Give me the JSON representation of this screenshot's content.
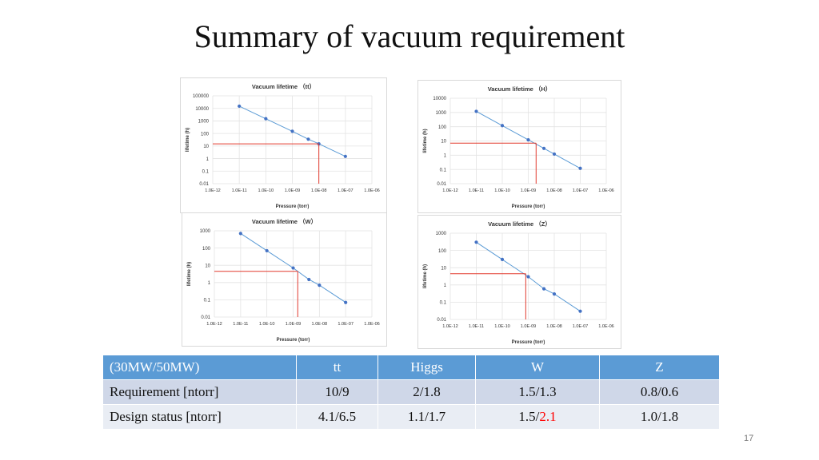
{
  "title": "Summary of vacuum requirement",
  "page_number": "17",
  "colors": {
    "series": "#5b9bd5",
    "marker": "#4472c4",
    "requirement_line": "#e23a2e",
    "table_header": "#5b9bd5",
    "highlight_text": "#ff0000"
  },
  "chart_data": [
    {
      "type": "line",
      "title": "Vacuum lifetime （tt）",
      "xlabel": "Pressure (torr)",
      "ylabel": "lifetime (h)",
      "x_scale": "log",
      "y_scale": "log",
      "xticks": [
        "1.0E-12",
        "1.0E-11",
        "1.0E-10",
        "1.0E-09",
        "1.0E-08",
        "1.0E-07",
        "1.0E-06"
      ],
      "yticks": [
        "0.01",
        "0.1",
        "1",
        "10",
        "100",
        "1000",
        "10000",
        "100000"
      ],
      "xlim": [
        1e-12,
        1e-06
      ],
      "ylim": [
        0.01,
        100000
      ],
      "series": [
        {
          "name": "lifetime",
          "x": [
            1e-11,
            1e-10,
            1e-09,
            4e-09,
            1e-08,
            1e-07
          ],
          "y": [
            15000,
            1500,
            150,
            35,
            15,
            1.5
          ]
        }
      ],
      "requirement": {
        "x": 1e-08,
        "y": 15
      }
    },
    {
      "type": "line",
      "title": "Vacuum lifetime （H）",
      "xlabel": "Pressure (torr)",
      "ylabel": "lifetime (h)",
      "x_scale": "log",
      "y_scale": "log",
      "xticks": [
        "1.0E-12",
        "1.0E-11",
        "1.0E-10",
        "1.0E-09",
        "1.0E-08",
        "1.0E-07",
        "1.0E-06"
      ],
      "yticks": [
        "0.01",
        "0.1",
        "1",
        "10",
        "100",
        "1000",
        "10000"
      ],
      "xlim": [
        1e-12,
        1e-06
      ],
      "ylim": [
        0.01,
        10000
      ],
      "series": [
        {
          "name": "lifetime",
          "x": [
            1e-11,
            1e-10,
            1e-09,
            4e-09,
            1e-08,
            1e-07
          ],
          "y": [
            1200,
            120,
            12,
            3,
            1.2,
            0.12
          ]
        }
      ],
      "requirement": {
        "x": 2e-09,
        "y": 7
      }
    },
    {
      "type": "line",
      "title": "Vacuum lifetime （W）",
      "xlabel": "Pressure (torr)",
      "ylabel": "lifetime (h)",
      "x_scale": "log",
      "y_scale": "log",
      "xticks": [
        "1.0E-12",
        "1.0E-11",
        "1.0E-10",
        "1.0E-09",
        "1.0E-08",
        "1.0E-07",
        "1.0E-06"
      ],
      "yticks": [
        "0.01",
        "0.1",
        "1",
        "10",
        "100",
        "1000"
      ],
      "xlim": [
        1e-12,
        1e-06
      ],
      "ylim": [
        0.01,
        1000
      ],
      "series": [
        {
          "name": "lifetime",
          "x": [
            1e-11,
            1e-10,
            1e-09,
            4e-09,
            1e-08,
            1e-07
          ],
          "y": [
            700,
            70,
            7,
            1.5,
            0.7,
            0.07
          ]
        }
      ],
      "requirement": {
        "x": 1.5e-09,
        "y": 4.5
      }
    },
    {
      "type": "line",
      "title": "Vacuum lifetime （Z）",
      "xlabel": "Pressure (torr)",
      "ylabel": "lifetime (h)",
      "x_scale": "log",
      "y_scale": "log",
      "xticks": [
        "1.0E-12",
        "1.0E-11",
        "1.0E-10",
        "1.0E-09",
        "1.0E-08",
        "1.0E-07",
        "1.0E-06"
      ],
      "yticks": [
        "0.01",
        "0.1",
        "1",
        "10",
        "100",
        "1000"
      ],
      "xlim": [
        1e-12,
        1e-06
      ],
      "ylim": [
        0.01,
        1000
      ],
      "series": [
        {
          "name": "lifetime",
          "x": [
            1e-11,
            1e-10,
            1e-09,
            4e-09,
            1e-08,
            1e-07
          ],
          "y": [
            300,
            30,
            3,
            0.6,
            0.3,
            0.03
          ]
        }
      ],
      "requirement": {
        "x": 8e-10,
        "y": 4.5
      }
    }
  ],
  "table": {
    "headers": [
      "(30MW/50MW)",
      "tt",
      "Higgs",
      "W",
      "Z"
    ],
    "rows": [
      {
        "label": "Requirement [ntorr]",
        "tt": "10/9",
        "higgs": "2/1.8",
        "w": "1.5/1.3",
        "z": "0.8/0.6"
      },
      {
        "label": "Design status [ntorr]",
        "tt": "4.1/6.5",
        "higgs": "1.1/1.7",
        "w_part1": "1.5/",
        "w_part2": "2.1",
        "z": "1.0/1.8"
      }
    ]
  }
}
